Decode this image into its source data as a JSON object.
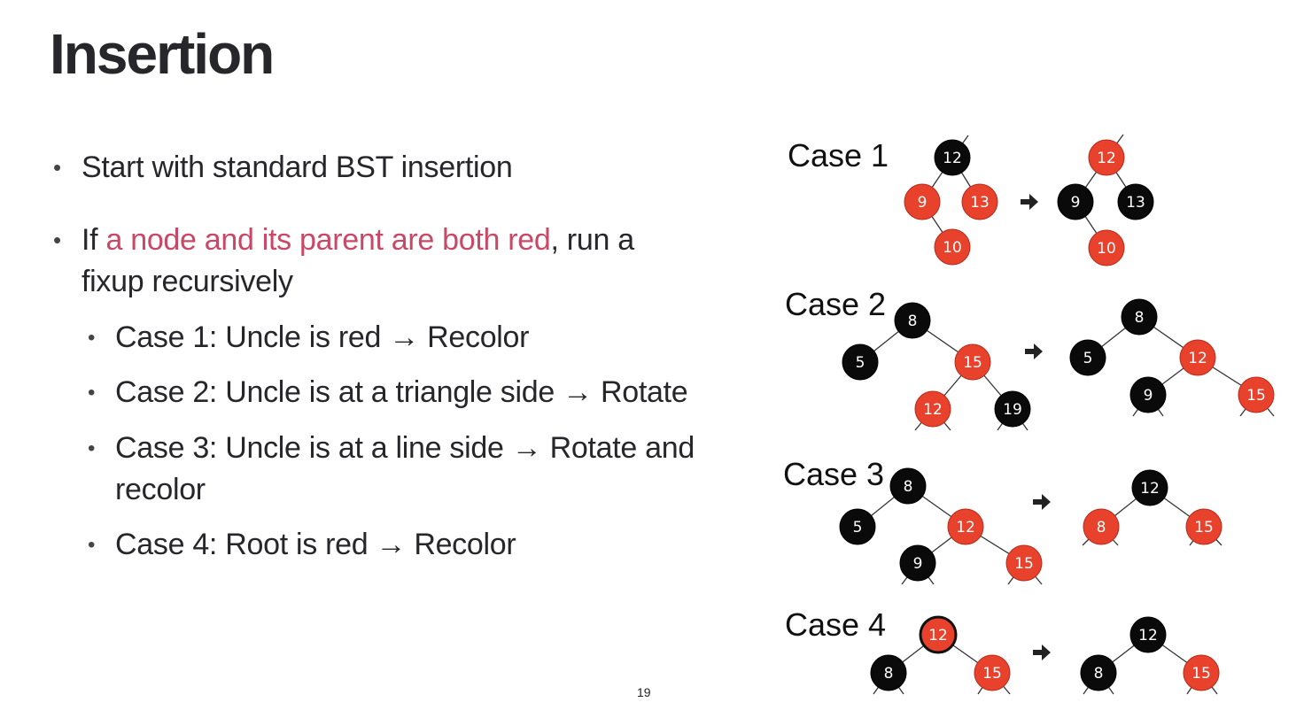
{
  "title": "Insertion",
  "bullets": {
    "b1": "Start with standard BST insertion",
    "b2_prefix": "If ",
    "b2_highlight": "a node and its parent are both red",
    "b2_suffix": ", run a",
    "b2_line2": "fixup recursively",
    "sub1": "Case 1: Uncle is red → Recolor",
    "sub2": "Case 2: Uncle is at a triangle side → Rotate",
    "sub3_line1": "Case 3: Uncle is at a line side → Rotate and",
    "sub3_line2": "recolor",
    "sub4": "Case 4: Root is red → Recolor"
  },
  "colors": {
    "red_node": "#e8412c",
    "black_node": "#0a0a0a",
    "highlight": "#c94866"
  },
  "cases": [
    {
      "label": "Case 1",
      "before": [
        {
          "id": "12",
          "label": "12",
          "color": "black"
        },
        {
          "id": "9",
          "label": "9",
          "color": "red",
          "parent": "12"
        },
        {
          "id": "13",
          "label": "13",
          "color": "red",
          "parent": "12"
        },
        {
          "id": "10",
          "label": "10",
          "color": "red",
          "parent": "9"
        }
      ],
      "after": [
        {
          "id": "12",
          "label": "12",
          "color": "red"
        },
        {
          "id": "9",
          "label": "9",
          "color": "black",
          "parent": "12"
        },
        {
          "id": "13",
          "label": "13",
          "color": "black",
          "parent": "12"
        },
        {
          "id": "10",
          "label": "10",
          "color": "red",
          "parent": "9"
        }
      ]
    },
    {
      "label": "Case 2",
      "before": [
        {
          "id": "8",
          "label": "8",
          "color": "black"
        },
        {
          "id": "5",
          "label": "5",
          "color": "black",
          "parent": "8"
        },
        {
          "id": "15",
          "label": "15",
          "color": "red",
          "parent": "8"
        },
        {
          "id": "12",
          "label": "12",
          "color": "red",
          "parent": "15"
        },
        {
          "id": "19",
          "label": "19",
          "color": "black",
          "parent": "15"
        }
      ],
      "after": [
        {
          "id": "8",
          "label": "8",
          "color": "black"
        },
        {
          "id": "5",
          "label": "5",
          "color": "black",
          "parent": "8"
        },
        {
          "id": "12",
          "label": "12",
          "color": "red",
          "parent": "8"
        },
        {
          "id": "9",
          "label": "9",
          "color": "black",
          "parent": "12"
        },
        {
          "id": "15",
          "label": "15",
          "color": "red",
          "parent": "12"
        }
      ]
    },
    {
      "label": "Case 3",
      "before": [
        {
          "id": "8",
          "label": "8",
          "color": "black"
        },
        {
          "id": "5",
          "label": "5",
          "color": "black",
          "parent": "8"
        },
        {
          "id": "12",
          "label": "12",
          "color": "red",
          "parent": "8"
        },
        {
          "id": "9",
          "label": "9",
          "color": "black",
          "parent": "12"
        },
        {
          "id": "15",
          "label": "15",
          "color": "red",
          "parent": "12"
        }
      ],
      "after": [
        {
          "id": "12",
          "label": "12",
          "color": "black"
        },
        {
          "id": "8",
          "label": "8",
          "color": "red",
          "parent": "12"
        },
        {
          "id": "15",
          "label": "15",
          "color": "red",
          "parent": "12"
        }
      ]
    },
    {
      "label": "Case 4",
      "before": [
        {
          "id": "12",
          "label": "12",
          "color": "red"
        },
        {
          "id": "8",
          "label": "8",
          "color": "black",
          "parent": "12"
        },
        {
          "id": "15",
          "label": "15",
          "color": "red",
          "parent": "12"
        }
      ],
      "after": [
        {
          "id": "12",
          "label": "12",
          "color": "black"
        },
        {
          "id": "8",
          "label": "8",
          "color": "black",
          "parent": "12"
        },
        {
          "id": "15",
          "label": "15",
          "color": "red",
          "parent": "12"
        }
      ]
    }
  ],
  "page_number": "19"
}
